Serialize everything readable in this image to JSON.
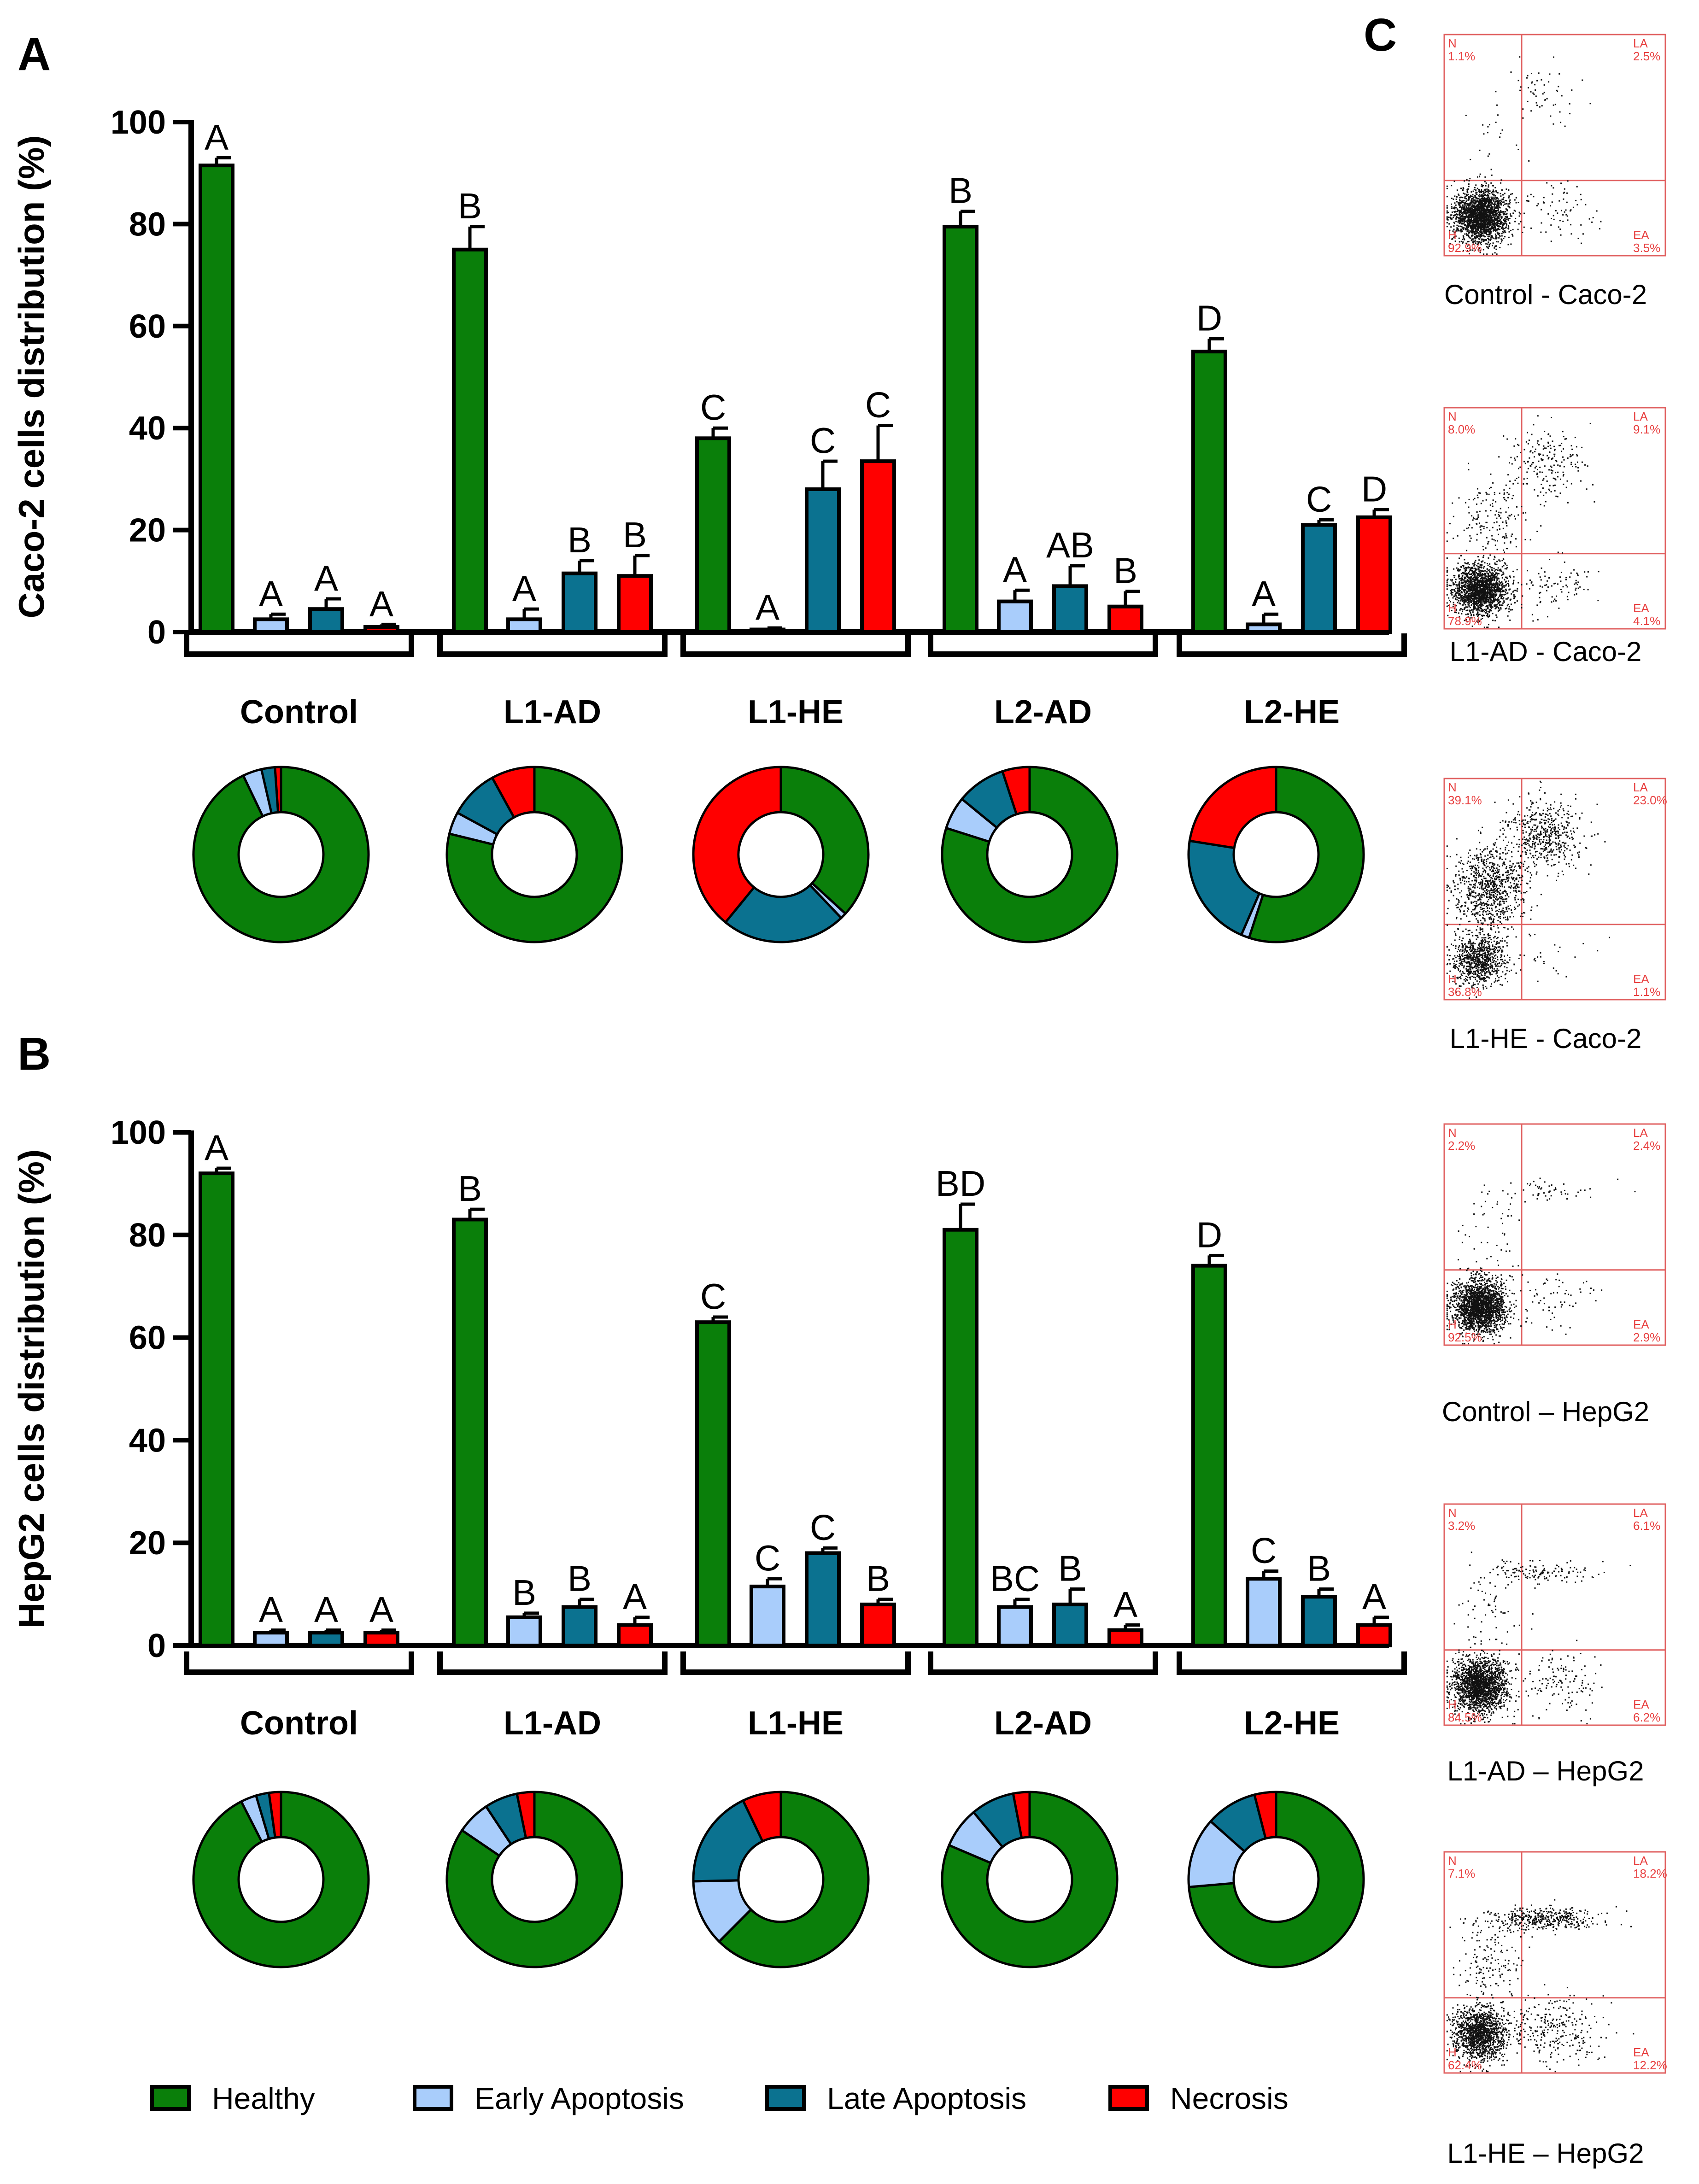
{
  "colors": {
    "healthy": "#0a7f0a",
    "early_apoptosis": "#a9cdfb",
    "late_apoptosis": "#0b7290",
    "necrosis": "#ff0000",
    "axis": "#000000",
    "flow_lines": "#e06060",
    "flow_label": "#e84040",
    "dots": "#111111"
  },
  "panels": {
    "a_label": "A",
    "b_label": "B",
    "c_label": "C"
  },
  "legend": [
    {
      "key": "healthy",
      "label": "Healthy",
      "color": "#0a7f0a"
    },
    {
      "key": "early_apoptosis",
      "label": "Early Apoptosis",
      "color": "#a9cdfb"
    },
    {
      "key": "late_apoptosis",
      "label": "Late Apoptosis",
      "color": "#0b7290"
    },
    {
      "key": "necrosis",
      "label": "Necrosis",
      "color": "#ff0000"
    }
  ],
  "chart_data": [
    {
      "type": "bar",
      "panel": "A",
      "ylabel": "Caco-2 cells distribution (%)",
      "ylim": [
        0,
        100
      ],
      "yticks": [
        0,
        20,
        40,
        60,
        80,
        100
      ],
      "categories": [
        "Control",
        "L1-AD",
        "L1-HE",
        "L2-AD",
        "L2-HE"
      ],
      "series": [
        {
          "name": "Healthy",
          "values": [
            91.5,
            75,
            38,
            79.5,
            55
          ],
          "errors": [
            1.5,
            4.5,
            2,
            3,
            2.5
          ],
          "letters": [
            "A",
            "B",
            "C",
            "B",
            "D"
          ]
        },
        {
          "name": "Early Apoptosis",
          "values": [
            2.5,
            2.5,
            0.5,
            6,
            1.5
          ],
          "errors": [
            1,
            2,
            0.3,
            2.2,
            2
          ],
          "letters": [
            "A",
            "A",
            "A",
            "A",
            "A"
          ]
        },
        {
          "name": "Late Apoptosis",
          "values": [
            4.5,
            11.5,
            28,
            9,
            21
          ],
          "errors": [
            2,
            2.5,
            5.5,
            4,
            1
          ],
          "letters": [
            "A",
            "B",
            "C",
            "AB",
            "C"
          ]
        },
        {
          "name": "Necrosis",
          "values": [
            1,
            11,
            33.5,
            5,
            22.5
          ],
          "errors": [
            0.5,
            4,
            7,
            3,
            1.5
          ],
          "letters": [
            "A",
            "B",
            "C",
            "B",
            "D"
          ]
        }
      ],
      "donuts": [
        [
          92.9,
          3.5,
          2.5,
          1.1
        ],
        [
          78.9,
          4.1,
          9.1,
          8.0
        ],
        [
          36.8,
          1.1,
          23.0,
          39.1
        ],
        [
          79.5,
          6,
          9,
          5
        ],
        [
          55,
          1.5,
          21,
          22.5
        ]
      ]
    },
    {
      "type": "bar",
      "panel": "B",
      "ylabel": "HepG2 cells distribution (%)",
      "ylim": [
        0,
        100
      ],
      "yticks": [
        0,
        20,
        40,
        60,
        80,
        100
      ],
      "categories": [
        "Control",
        "L1-AD",
        "L1-HE",
        "L2-AD",
        "L2-HE"
      ],
      "series": [
        {
          "name": "Healthy",
          "values": [
            92,
            83,
            63,
            81,
            74
          ],
          "errors": [
            1,
            2,
            1,
            5,
            2
          ],
          "letters": [
            "A",
            "B",
            "C",
            "BD",
            "D"
          ]
        },
        {
          "name": "Early Apoptosis",
          "values": [
            2.5,
            5.5,
            11.5,
            7.5,
            13
          ],
          "errors": [
            0.5,
            0.8,
            1.5,
            1.5,
            1.5
          ],
          "letters": [
            "A",
            "B",
            "C",
            "BC",
            "C"
          ]
        },
        {
          "name": "Late Apoptosis",
          "values": [
            2.5,
            7.5,
            18,
            8,
            9.5
          ],
          "errors": [
            0.5,
            1.5,
            1,
            3,
            1.5
          ],
          "letters": [
            "A",
            "B",
            "C",
            "B",
            "B"
          ]
        },
        {
          "name": "Necrosis",
          "values": [
            2.5,
            4,
            8,
            3,
            4
          ],
          "errors": [
            0.5,
            1.5,
            1,
            1,
            1.5
          ],
          "letters": [
            "A",
            "A",
            "B",
            "A",
            "A"
          ]
        }
      ],
      "donuts": [
        [
          92.5,
          2.9,
          2.4,
          2.2
        ],
        [
          84.5,
          6.2,
          6.1,
          3.2
        ],
        [
          62.4,
          12.2,
          18.2,
          7.1
        ],
        [
          81,
          7.5,
          8,
          3
        ],
        [
          74,
          13,
          9.5,
          4
        ]
      ]
    }
  ],
  "flow_plots": [
    {
      "caption": "Control - Caco-2",
      "q": {
        "N": "N",
        "LA": "LA",
        "H": "H",
        "EA": "EA"
      },
      "v": {
        "N": "1.1%",
        "LA": "2.5%",
        "H": "92.9%",
        "EA": "3.5%"
      }
    },
    {
      "caption": "L1-AD - Caco-2",
      "q": {
        "N": "N",
        "LA": "LA",
        "H": "H",
        "EA": "EA"
      },
      "v": {
        "N": "8.0%",
        "LA": "9.1%",
        "H": "78.9%",
        "EA": "4.1%"
      }
    },
    {
      "caption": "L1-HE - Caco-2",
      "q": {
        "N": "N",
        "LA": "LA",
        "H": "H",
        "EA": "EA"
      },
      "v": {
        "N": "39.1%",
        "LA": "23.0%",
        "H": "36.8%",
        "EA": "1.1%"
      }
    },
    {
      "caption": "Control – HepG2",
      "q": {
        "N": "N",
        "LA": "LA",
        "H": "H",
        "EA": "EA"
      },
      "v": {
        "N": "2.2%",
        "LA": "2.4%",
        "H": "92.5%",
        "EA": "2.9%"
      }
    },
    {
      "caption": "L1-AD – HepG2",
      "q": {
        "N": "N",
        "LA": "LA",
        "H": "H",
        "EA": "EA"
      },
      "v": {
        "N": "3.2%",
        "LA": "6.1%",
        "H": "84.5%",
        "EA": "6.2%"
      }
    },
    {
      "caption": "L1-HE – HepG2",
      "q": {
        "N": "N",
        "LA": "LA",
        "H": "H",
        "EA": "EA"
      },
      "v": {
        "N": "7.1%",
        "LA": "18.2%",
        "H": "62.4%",
        "EA": "12.2%"
      }
    }
  ]
}
